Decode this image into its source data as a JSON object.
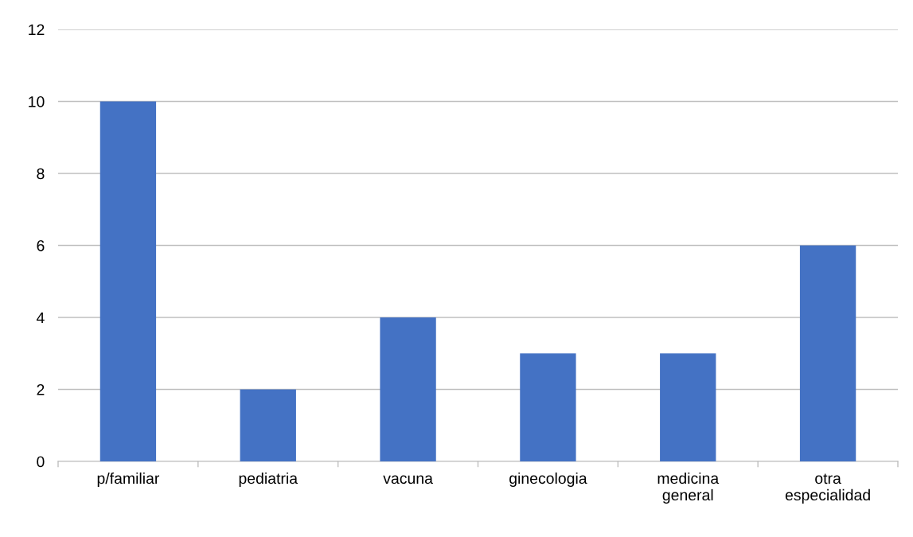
{
  "chart_data": {
    "type": "bar",
    "categories": [
      "p/familiar",
      "pediatria",
      "vacuna",
      "ginecologia",
      "medicina\ngeneral",
      "otra\nespecialidad"
    ],
    "values": [
      10,
      2,
      4,
      3,
      3,
      6
    ],
    "color": "#4472c4",
    "ylim": [
      0,
      12
    ],
    "yticks": [
      0,
      2,
      4,
      6,
      8,
      10,
      12
    ],
    "grid": "y"
  }
}
